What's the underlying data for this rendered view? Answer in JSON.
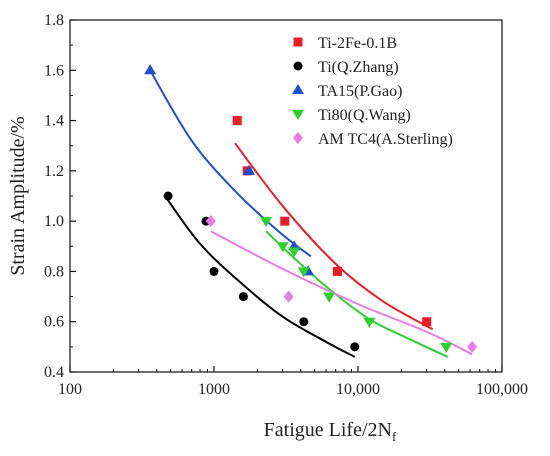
{
  "chart_data": {
    "type": "scatter",
    "title": "",
    "xlabel": "Fatigue Life/2N",
    "xlabel_sub": "f",
    "ylabel": "Strain Amplitude/%",
    "xscale": "log",
    "xlim": [
      100,
      100000
    ],
    "ylim": [
      0.4,
      1.8
    ],
    "x_ticks": [
      "100",
      "1000",
      "10,000",
      "100,000"
    ],
    "y_ticks": [
      "0.4",
      "0.6",
      "0.8",
      "1.0",
      "1.2",
      "1.4",
      "1.6",
      "1.8"
    ],
    "legend_position": "top-right",
    "series": [
      {
        "name": "Ti-2Fe-0.1B",
        "color": "#ee1c25",
        "marker": "square",
        "points": [
          [
            1450,
            1.4
          ],
          [
            1700,
            1.2
          ],
          [
            3100,
            1.0
          ],
          [
            7200,
            0.8
          ],
          [
            30000,
            0.6
          ]
        ],
        "fit": [
          [
            1400,
            1.31
          ],
          [
            3000,
            1.06
          ],
          [
            7000,
            0.83
          ],
          [
            15000,
            0.68
          ],
          [
            33000,
            0.57
          ]
        ]
      },
      {
        "name": "Ti(Q.Zhang)",
        "color": "#000000",
        "marker": "circle",
        "points": [
          [
            480,
            1.1
          ],
          [
            880,
            1.0
          ],
          [
            1000,
            0.8
          ],
          [
            1600,
            0.7
          ],
          [
            4200,
            0.6
          ],
          [
            9500,
            0.5
          ]
        ],
        "fit": [
          [
            470,
            1.09
          ],
          [
            800,
            0.91
          ],
          [
            1500,
            0.76
          ],
          [
            3000,
            0.62
          ],
          [
            6000,
            0.52
          ],
          [
            9500,
            0.46
          ]
        ]
      },
      {
        "name": "TA15(P.Gao)",
        "color": "#1f4fd1",
        "marker": "triangle-up",
        "points": [
          [
            360,
            1.6
          ],
          [
            1750,
            1.2
          ],
          [
            3600,
            0.9
          ],
          [
            4500,
            0.8
          ]
        ],
        "fit": [
          [
            360,
            1.6
          ],
          [
            700,
            1.32
          ],
          [
            1400,
            1.12
          ],
          [
            2800,
            0.96
          ],
          [
            4700,
            0.86
          ]
        ]
      },
      {
        "name": "Ti80(Q.Wang)",
        "color": "#2bd12b",
        "marker": "triangle-down",
        "points": [
          [
            2300,
            1.0
          ],
          [
            3000,
            0.9
          ],
          [
            3600,
            0.88
          ],
          [
            4200,
            0.8
          ],
          [
            6300,
            0.7
          ],
          [
            12000,
            0.6
          ],
          [
            41000,
            0.5
          ]
        ],
        "fit": [
          [
            2300,
            0.96
          ],
          [
            3500,
            0.86
          ],
          [
            6000,
            0.74
          ],
          [
            12000,
            0.61
          ],
          [
            25000,
            0.52
          ],
          [
            42000,
            0.46
          ]
        ]
      },
      {
        "name": "AM TC4(A.Sterling)",
        "color": "#ea7be9",
        "marker": "diamond",
        "points": [
          [
            950,
            1.0
          ],
          [
            3300,
            0.7
          ],
          [
            62000,
            0.5
          ]
        ],
        "fit": [
          [
            950,
            0.96
          ],
          [
            3000,
            0.81
          ],
          [
            10000,
            0.67
          ],
          [
            30000,
            0.56
          ],
          [
            62000,
            0.47
          ]
        ]
      }
    ]
  }
}
